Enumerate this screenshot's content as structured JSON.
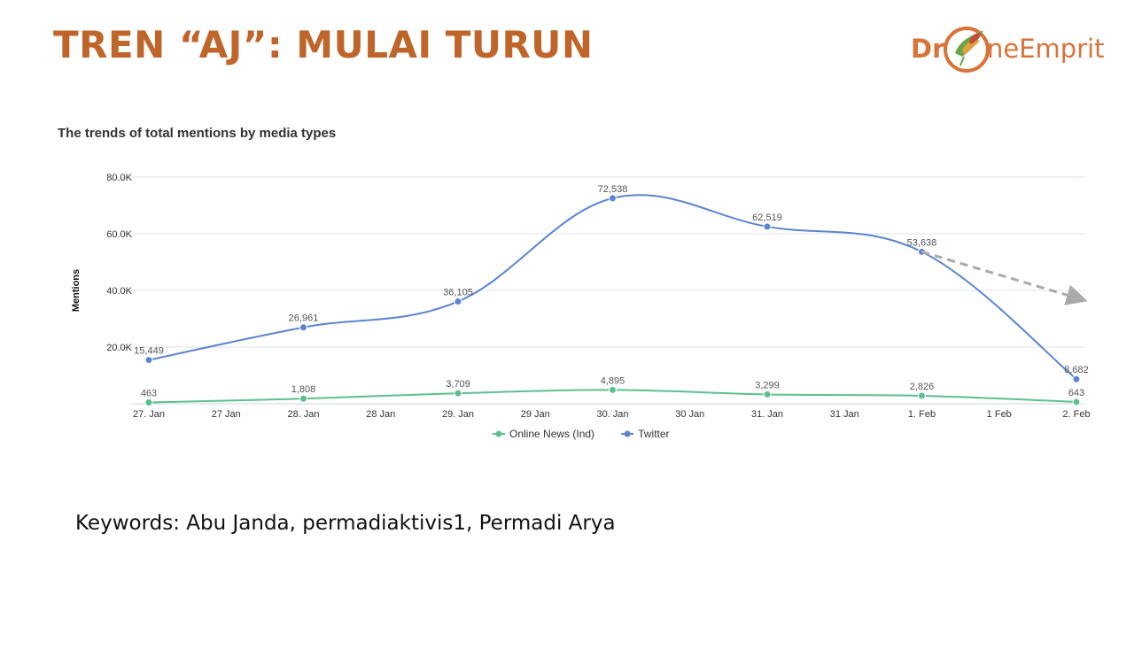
{
  "slide": {
    "title": "TREN “AJ”: MULAI TURUN",
    "keywords": "Keywords: Abu Janda, permadiaktivis1, Permadi Arya"
  },
  "logo": {
    "text_left": "Dr",
    "text_right": "neEmprit",
    "colors": {
      "text": "#d9733a",
      "ring": "#d9733a",
      "bird": "#6aa34a"
    }
  },
  "chart_data": {
    "type": "line",
    "title": "The trends of total mentions by media types",
    "ylabel": "Mentions",
    "xlabel": "",
    "ylim": [
      0,
      80000
    ],
    "y_ticks": [
      {
        "value": 20000,
        "label": "20.0K"
      },
      {
        "value": 40000,
        "label": "40.0K"
      },
      {
        "value": 60000,
        "label": "60.0K"
      },
      {
        "value": 80000,
        "label": "80.0K"
      }
    ],
    "x_tick_labels": [
      "27. Jan",
      "27 Jan",
      "28. Jan",
      "28 Jan",
      "29. Jan",
      "29 Jan",
      "30. Jan",
      "30 Jan",
      "31. Jan",
      "31 Jan",
      "1. Feb",
      "1 Feb",
      "2. Feb"
    ],
    "categories": [
      "27. Jan",
      "28. Jan",
      "29. Jan",
      "30. Jan",
      "31. Jan",
      "1. Feb",
      "2. Feb"
    ],
    "grid": true,
    "legend_position": "bottom-center",
    "series": [
      {
        "name": "Online News (Ind)",
        "color": "#5cc08e",
        "values": [
          463,
          1808,
          3709,
          4895,
          3299,
          2826,
          643
        ],
        "labels": [
          "463",
          "1,808",
          "3,709",
          "4,895",
          "3,299",
          "2,826",
          "643"
        ]
      },
      {
        "name": "Twitter",
        "color": "#5b84d2",
        "values": [
          15449,
          26961,
          36105,
          72538,
          62519,
          53638,
          8682
        ],
        "labels": [
          "15,449",
          "26,961",
          "36,105",
          "72,538",
          "62,519",
          "53,638",
          "8,682"
        ]
      }
    ],
    "annotations": [
      {
        "type": "dashed-arrow",
        "color": "#aaaaaa",
        "from": {
          "x": "1. Feb",
          "y": 53638
        },
        "to": {
          "x": "2. Feb",
          "y": 37000
        }
      }
    ]
  }
}
